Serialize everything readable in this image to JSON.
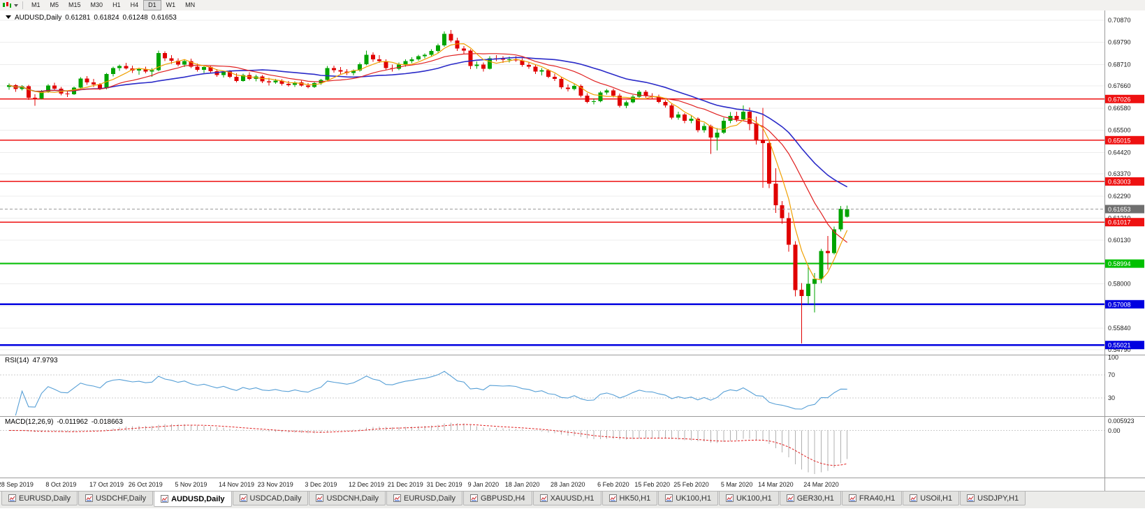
{
  "toolbar": {
    "timeframes": [
      "M1",
      "M5",
      "M15",
      "M30",
      "H1",
      "H4",
      "D1",
      "W1",
      "MN"
    ],
    "active_timeframe": "D1"
  },
  "chart_header": {
    "symbol": "AUDUSD,Daily",
    "open": "0.61281",
    "high": "0.61824",
    "low": "0.61248",
    "close": "0.61653"
  },
  "indicators": {
    "rsi": {
      "name": "RSI(14)",
      "value": "47.9793",
      "levels": [
        "100",
        "70",
        "30"
      ]
    },
    "macd": {
      "name": "MACD(12,26,9)",
      "value_main": "-0.011962",
      "value_signal": "-0.018663",
      "axis_labels": [
        "0.005923",
        "0.00"
      ]
    }
  },
  "bottom_tabs": {
    "active_index": 2,
    "items": [
      "EURUSD,Daily",
      "USDCHF,Daily",
      "AUDUSD,Daily",
      "USDCAD,Daily",
      "USDCNH,Daily",
      "EURUSD,Daily",
      "GBPUSD,H4",
      "XAUUSD,H1",
      "HK50,H1",
      "UK100,H1",
      "UK100,H1",
      "GER30,H1",
      "FRA40,H1",
      "USOil,H1",
      "USDJPY,H1"
    ]
  },
  "colors": {
    "candle_up": "#00a400",
    "candle_down": "#e00000",
    "ma_fast": "#f0a000",
    "ma_mid": "#e02020",
    "ma_slow": "#2a2ac8",
    "line_red": "#ee1111",
    "line_green": "#00c000",
    "line_blue": "#0000e0",
    "current_price_tag": "#6f6f6f",
    "rsi_line": "#569fd6",
    "macd_hist": "#b0b0b0",
    "macd_signal": "#e02020"
  },
  "chart_data": {
    "type": "candlestick",
    "symbol": "AUDUSD",
    "timeframe": "Daily",
    "current_bar": {
      "open": 0.61281,
      "high": 0.61824,
      "low": 0.61248,
      "close": 0.61653
    },
    "y_axis_ticks": [
      "0.70870",
      "0.69790",
      "0.68710",
      "0.67660",
      "0.66580",
      "0.65500",
      "0.64420",
      "0.63370",
      "0.62290",
      "0.61210",
      "0.60130",
      "0.59050",
      "0.58000",
      "0.56920",
      "0.55840",
      "0.54790"
    ],
    "ma_periods": {
      "fast": 5,
      "mid": 13,
      "slow": 25
    },
    "horizontal_lines": [
      {
        "price": 0.67026,
        "label": "0.67026",
        "color": "red"
      },
      {
        "price": 0.65015,
        "label": "0.65015",
        "color": "red"
      },
      {
        "price": 0.63003,
        "label": "0.63003",
        "color": "red"
      },
      {
        "price": 0.61017,
        "label": "0.61017",
        "color": "red"
      },
      {
        "price": 0.58994,
        "label": "0.58994",
        "color": "green"
      },
      {
        "price": 0.57008,
        "label": "0.57008",
        "color": "blue"
      },
      {
        "price": 0.55021,
        "label": "0.55021",
        "color": "blue"
      }
    ],
    "current_price": {
      "price": 0.61653,
      "label": "0.61653"
    },
    "vertical_line": {
      "index": 116,
      "from": 0.666,
      "to": 0.627
    },
    "date_labels": [
      {
        "text": "28 Sep 2019",
        "i": 1
      },
      {
        "text": "8 Oct 2019",
        "i": 8
      },
      {
        "text": "17 Oct 2019",
        "i": 15
      },
      {
        "text": "26 Oct 2019",
        "i": 21
      },
      {
        "text": "5 Nov 2019",
        "i": 28
      },
      {
        "text": "14 Nov 2019",
        "i": 35
      },
      {
        "text": "23 Nov 2019",
        "i": 41
      },
      {
        "text": "3 Dec 2019",
        "i": 48
      },
      {
        "text": "12 Dec 2019",
        "i": 55
      },
      {
        "text": "21 Dec 2019",
        "i": 61
      },
      {
        "text": "31 Dec 2019",
        "i": 67
      },
      {
        "text": "9 Jan 2020",
        "i": 73
      },
      {
        "text": "18 Jan 2020",
        "i": 79
      },
      {
        "text": "28 Jan 2020",
        "i": 86
      },
      {
        "text": "6 Feb 2020",
        "i": 93
      },
      {
        "text": "15 Feb 2020",
        "i": 99
      },
      {
        "text": "25 Feb 2020",
        "i": 105
      },
      {
        "text": "5 Mar 2020",
        "i": 112
      },
      {
        "text": "14 Mar 2020",
        "i": 118
      },
      {
        "text": "24 Mar 2020",
        "i": 125
      }
    ],
    "candles": [
      [
        0.6762,
        0.6778,
        0.6748,
        0.677
      ],
      [
        0.677,
        0.6775,
        0.6738,
        0.6752
      ],
      [
        0.6752,
        0.677,
        0.6744,
        0.6765
      ],
      [
        0.6765,
        0.6772,
        0.6698,
        0.6708
      ],
      [
        0.6708,
        0.6725,
        0.667,
        0.6705
      ],
      [
        0.6705,
        0.6746,
        0.67,
        0.674
      ],
      [
        0.674,
        0.6775,
        0.6733,
        0.6769
      ],
      [
        0.6769,
        0.6782,
        0.6745,
        0.6753
      ],
      [
        0.6753,
        0.6762,
        0.672,
        0.673
      ],
      [
        0.673,
        0.6745,
        0.6712,
        0.6726
      ],
      [
        0.6726,
        0.6764,
        0.6722,
        0.6758
      ],
      [
        0.6758,
        0.681,
        0.6754,
        0.6802
      ],
      [
        0.6802,
        0.6815,
        0.6772,
        0.6784
      ],
      [
        0.6784,
        0.68,
        0.6762,
        0.6774
      ],
      [
        0.6774,
        0.6781,
        0.6746,
        0.6754
      ],
      [
        0.6754,
        0.683,
        0.675,
        0.6824
      ],
      [
        0.6824,
        0.6861,
        0.6812,
        0.6854
      ],
      [
        0.6854,
        0.687,
        0.684,
        0.6863
      ],
      [
        0.6863,
        0.688,
        0.6846,
        0.6852
      ],
      [
        0.6852,
        0.6866,
        0.683,
        0.6841
      ],
      [
        0.6841,
        0.6856,
        0.6821,
        0.6849
      ],
      [
        0.6849,
        0.6861,
        0.6828,
        0.6836
      ],
      [
        0.6836,
        0.6853,
        0.6811,
        0.6843
      ],
      [
        0.6843,
        0.6939,
        0.6838,
        0.6927
      ],
      [
        0.6927,
        0.6936,
        0.6887,
        0.6901
      ],
      [
        0.6901,
        0.6916,
        0.6874,
        0.689
      ],
      [
        0.689,
        0.6901,
        0.6862,
        0.6871
      ],
      [
        0.6871,
        0.6896,
        0.6859,
        0.6888
      ],
      [
        0.6888,
        0.6899,
        0.6854,
        0.6861
      ],
      [
        0.6861,
        0.6876,
        0.6837,
        0.6845
      ],
      [
        0.6845,
        0.6863,
        0.683,
        0.6858
      ],
      [
        0.6858,
        0.6866,
        0.6831,
        0.6839
      ],
      [
        0.6839,
        0.6848,
        0.6811,
        0.682
      ],
      [
        0.682,
        0.6841,
        0.6807,
        0.6836
      ],
      [
        0.6836,
        0.6843,
        0.6804,
        0.6811
      ],
      [
        0.6811,
        0.6828,
        0.6784,
        0.6791
      ],
      [
        0.6791,
        0.6826,
        0.6787,
        0.6819
      ],
      [
        0.6819,
        0.6833,
        0.6794,
        0.6801
      ],
      [
        0.6801,
        0.6821,
        0.6789,
        0.6813
      ],
      [
        0.6813,
        0.6819,
        0.6781,
        0.6789
      ],
      [
        0.6789,
        0.6806,
        0.6769,
        0.6784
      ],
      [
        0.6784,
        0.6801,
        0.6777,
        0.6793
      ],
      [
        0.6793,
        0.6799,
        0.6769,
        0.6777
      ],
      [
        0.6777,
        0.6791,
        0.6764,
        0.6771
      ],
      [
        0.6771,
        0.6789,
        0.6761,
        0.6783
      ],
      [
        0.6783,
        0.6793,
        0.6764,
        0.6769
      ],
      [
        0.6769,
        0.6781,
        0.6754,
        0.6761
      ],
      [
        0.6761,
        0.6786,
        0.6757,
        0.6781
      ],
      [
        0.6781,
        0.6801,
        0.6771,
        0.6796
      ],
      [
        0.6796,
        0.6863,
        0.6791,
        0.6853
      ],
      [
        0.6853,
        0.6866,
        0.6831,
        0.6844
      ],
      [
        0.6844,
        0.6859,
        0.6824,
        0.6837
      ],
      [
        0.6837,
        0.6849,
        0.6819,
        0.6829
      ],
      [
        0.6829,
        0.6846,
        0.6817,
        0.6841
      ],
      [
        0.6841,
        0.6881,
        0.6836,
        0.6873
      ],
      [
        0.6873,
        0.6939,
        0.6868,
        0.6919
      ],
      [
        0.6919,
        0.6931,
        0.6884,
        0.6897
      ],
      [
        0.6897,
        0.6916,
        0.6879,
        0.6887
      ],
      [
        0.6887,
        0.6896,
        0.6847,
        0.6854
      ],
      [
        0.6854,
        0.6871,
        0.6837,
        0.6851
      ],
      [
        0.6851,
        0.6881,
        0.6844,
        0.6871
      ],
      [
        0.6871,
        0.6896,
        0.6861,
        0.6887
      ],
      [
        0.6887,
        0.6906,
        0.6877,
        0.6897
      ],
      [
        0.6897,
        0.6919,
        0.6889,
        0.6911
      ],
      [
        0.6911,
        0.6926,
        0.6901,
        0.6919
      ],
      [
        0.6919,
        0.6946,
        0.6911,
        0.6937
      ],
      [
        0.6937,
        0.6973,
        0.6929,
        0.6964
      ],
      [
        0.6964,
        0.7033,
        0.6957,
        0.7021
      ],
      [
        0.7021,
        0.7039,
        0.6979,
        0.6989
      ],
      [
        0.6989,
        0.7001,
        0.6937,
        0.6949
      ],
      [
        0.6949,
        0.6961,
        0.6924,
        0.6939
      ],
      [
        0.6939,
        0.6946,
        0.6849,
        0.6864
      ],
      [
        0.6864,
        0.6886,
        0.6851,
        0.6871
      ],
      [
        0.6871,
        0.6881,
        0.6837,
        0.6851
      ],
      [
        0.6851,
        0.6911,
        0.6847,
        0.6901
      ],
      [
        0.6901,
        0.6916,
        0.6887,
        0.6899
      ],
      [
        0.6899,
        0.6911,
        0.6879,
        0.6894
      ],
      [
        0.6894,
        0.6909,
        0.6881,
        0.6897
      ],
      [
        0.6897,
        0.6911,
        0.6884,
        0.6891
      ],
      [
        0.6891,
        0.6901,
        0.6861,
        0.6869
      ],
      [
        0.6869,
        0.6881,
        0.6851,
        0.6861
      ],
      [
        0.6861,
        0.6871,
        0.6825,
        0.6837
      ],
      [
        0.6837,
        0.6853,
        0.6817,
        0.6844
      ],
      [
        0.6844,
        0.6849,
        0.6804,
        0.6811
      ],
      [
        0.6811,
        0.6827,
        0.6791,
        0.6801
      ],
      [
        0.6801,
        0.6811,
        0.6751,
        0.6759
      ],
      [
        0.6759,
        0.6773,
        0.6739,
        0.6751
      ],
      [
        0.6751,
        0.6776,
        0.6744,
        0.6767
      ],
      [
        0.6767,
        0.6774,
        0.6711,
        0.6719
      ],
      [
        0.6719,
        0.6731,
        0.6681,
        0.6689
      ],
      [
        0.6689,
        0.6706,
        0.6677,
        0.6691
      ],
      [
        0.6691,
        0.6741,
        0.6687,
        0.6734
      ],
      [
        0.6734,
        0.6751,
        0.6724,
        0.6744
      ],
      [
        0.6744,
        0.6753,
        0.6711,
        0.6719
      ],
      [
        0.6719,
        0.6729,
        0.6661,
        0.6669
      ],
      [
        0.6669,
        0.6696,
        0.6657,
        0.6687
      ],
      [
        0.6687,
        0.6723,
        0.6681,
        0.6714
      ],
      [
        0.6714,
        0.6746,
        0.6709,
        0.6737
      ],
      [
        0.6737,
        0.6747,
        0.6709,
        0.6717
      ],
      [
        0.6717,
        0.6731,
        0.6704,
        0.6714
      ],
      [
        0.6714,
        0.6724,
        0.6681,
        0.6689
      ],
      [
        0.6689,
        0.6697,
        0.6661,
        0.6671
      ],
      [
        0.6671,
        0.6679,
        0.6604,
        0.6611
      ],
      [
        0.6611,
        0.6641,
        0.6601,
        0.6627
      ],
      [
        0.6627,
        0.6634,
        0.6584,
        0.6597
      ],
      [
        0.6597,
        0.6621,
        0.6584,
        0.6607
      ],
      [
        0.6607,
        0.6614,
        0.6541,
        0.6551
      ],
      [
        0.6551,
        0.6584,
        0.6539,
        0.6571
      ],
      [
        0.6571,
        0.6577,
        0.6434,
        0.6514
      ],
      [
        0.6514,
        0.6561,
        0.6451,
        0.6539
      ],
      [
        0.6539,
        0.6611,
        0.6531,
        0.6597
      ],
      [
        0.6597,
        0.6639,
        0.6584,
        0.6621
      ],
      [
        0.6621,
        0.6641,
        0.6591,
        0.6604
      ],
      [
        0.6604,
        0.6671,
        0.6597,
        0.6641
      ],
      [
        0.6641,
        0.6661,
        0.6551,
        0.6581
      ],
      [
        0.6581,
        0.6617,
        0.6481,
        0.6499
      ],
      [
        0.6499,
        0.6551,
        0.6457,
        0.6487
      ],
      [
        0.6487,
        0.6501,
        0.6267,
        0.6289
      ],
      [
        0.6289,
        0.6364,
        0.6147,
        0.6184
      ],
      [
        0.6184,
        0.6204,
        0.6094,
        0.6121
      ],
      [
        0.6121,
        0.6149,
        0.5957,
        0.5991
      ],
      [
        0.5991,
        0.6009,
        0.5739,
        0.5771
      ],
      [
        0.5771,
        0.5804,
        0.551,
        0.5741
      ],
      [
        0.5741,
        0.5891,
        0.5701,
        0.5801
      ],
      [
        0.5801,
        0.5854,
        0.5661,
        0.5824
      ],
      [
        0.5824,
        0.5971,
        0.5804,
        0.5961
      ],
      [
        0.5961,
        0.6034,
        0.5871,
        0.5951
      ],
      [
        0.5951,
        0.6081,
        0.5944,
        0.6067
      ],
      [
        0.6067,
        0.6181,
        0.6057,
        0.6167
      ],
      [
        0.61281,
        0.61824,
        0.61248,
        0.61653
      ]
    ]
  }
}
